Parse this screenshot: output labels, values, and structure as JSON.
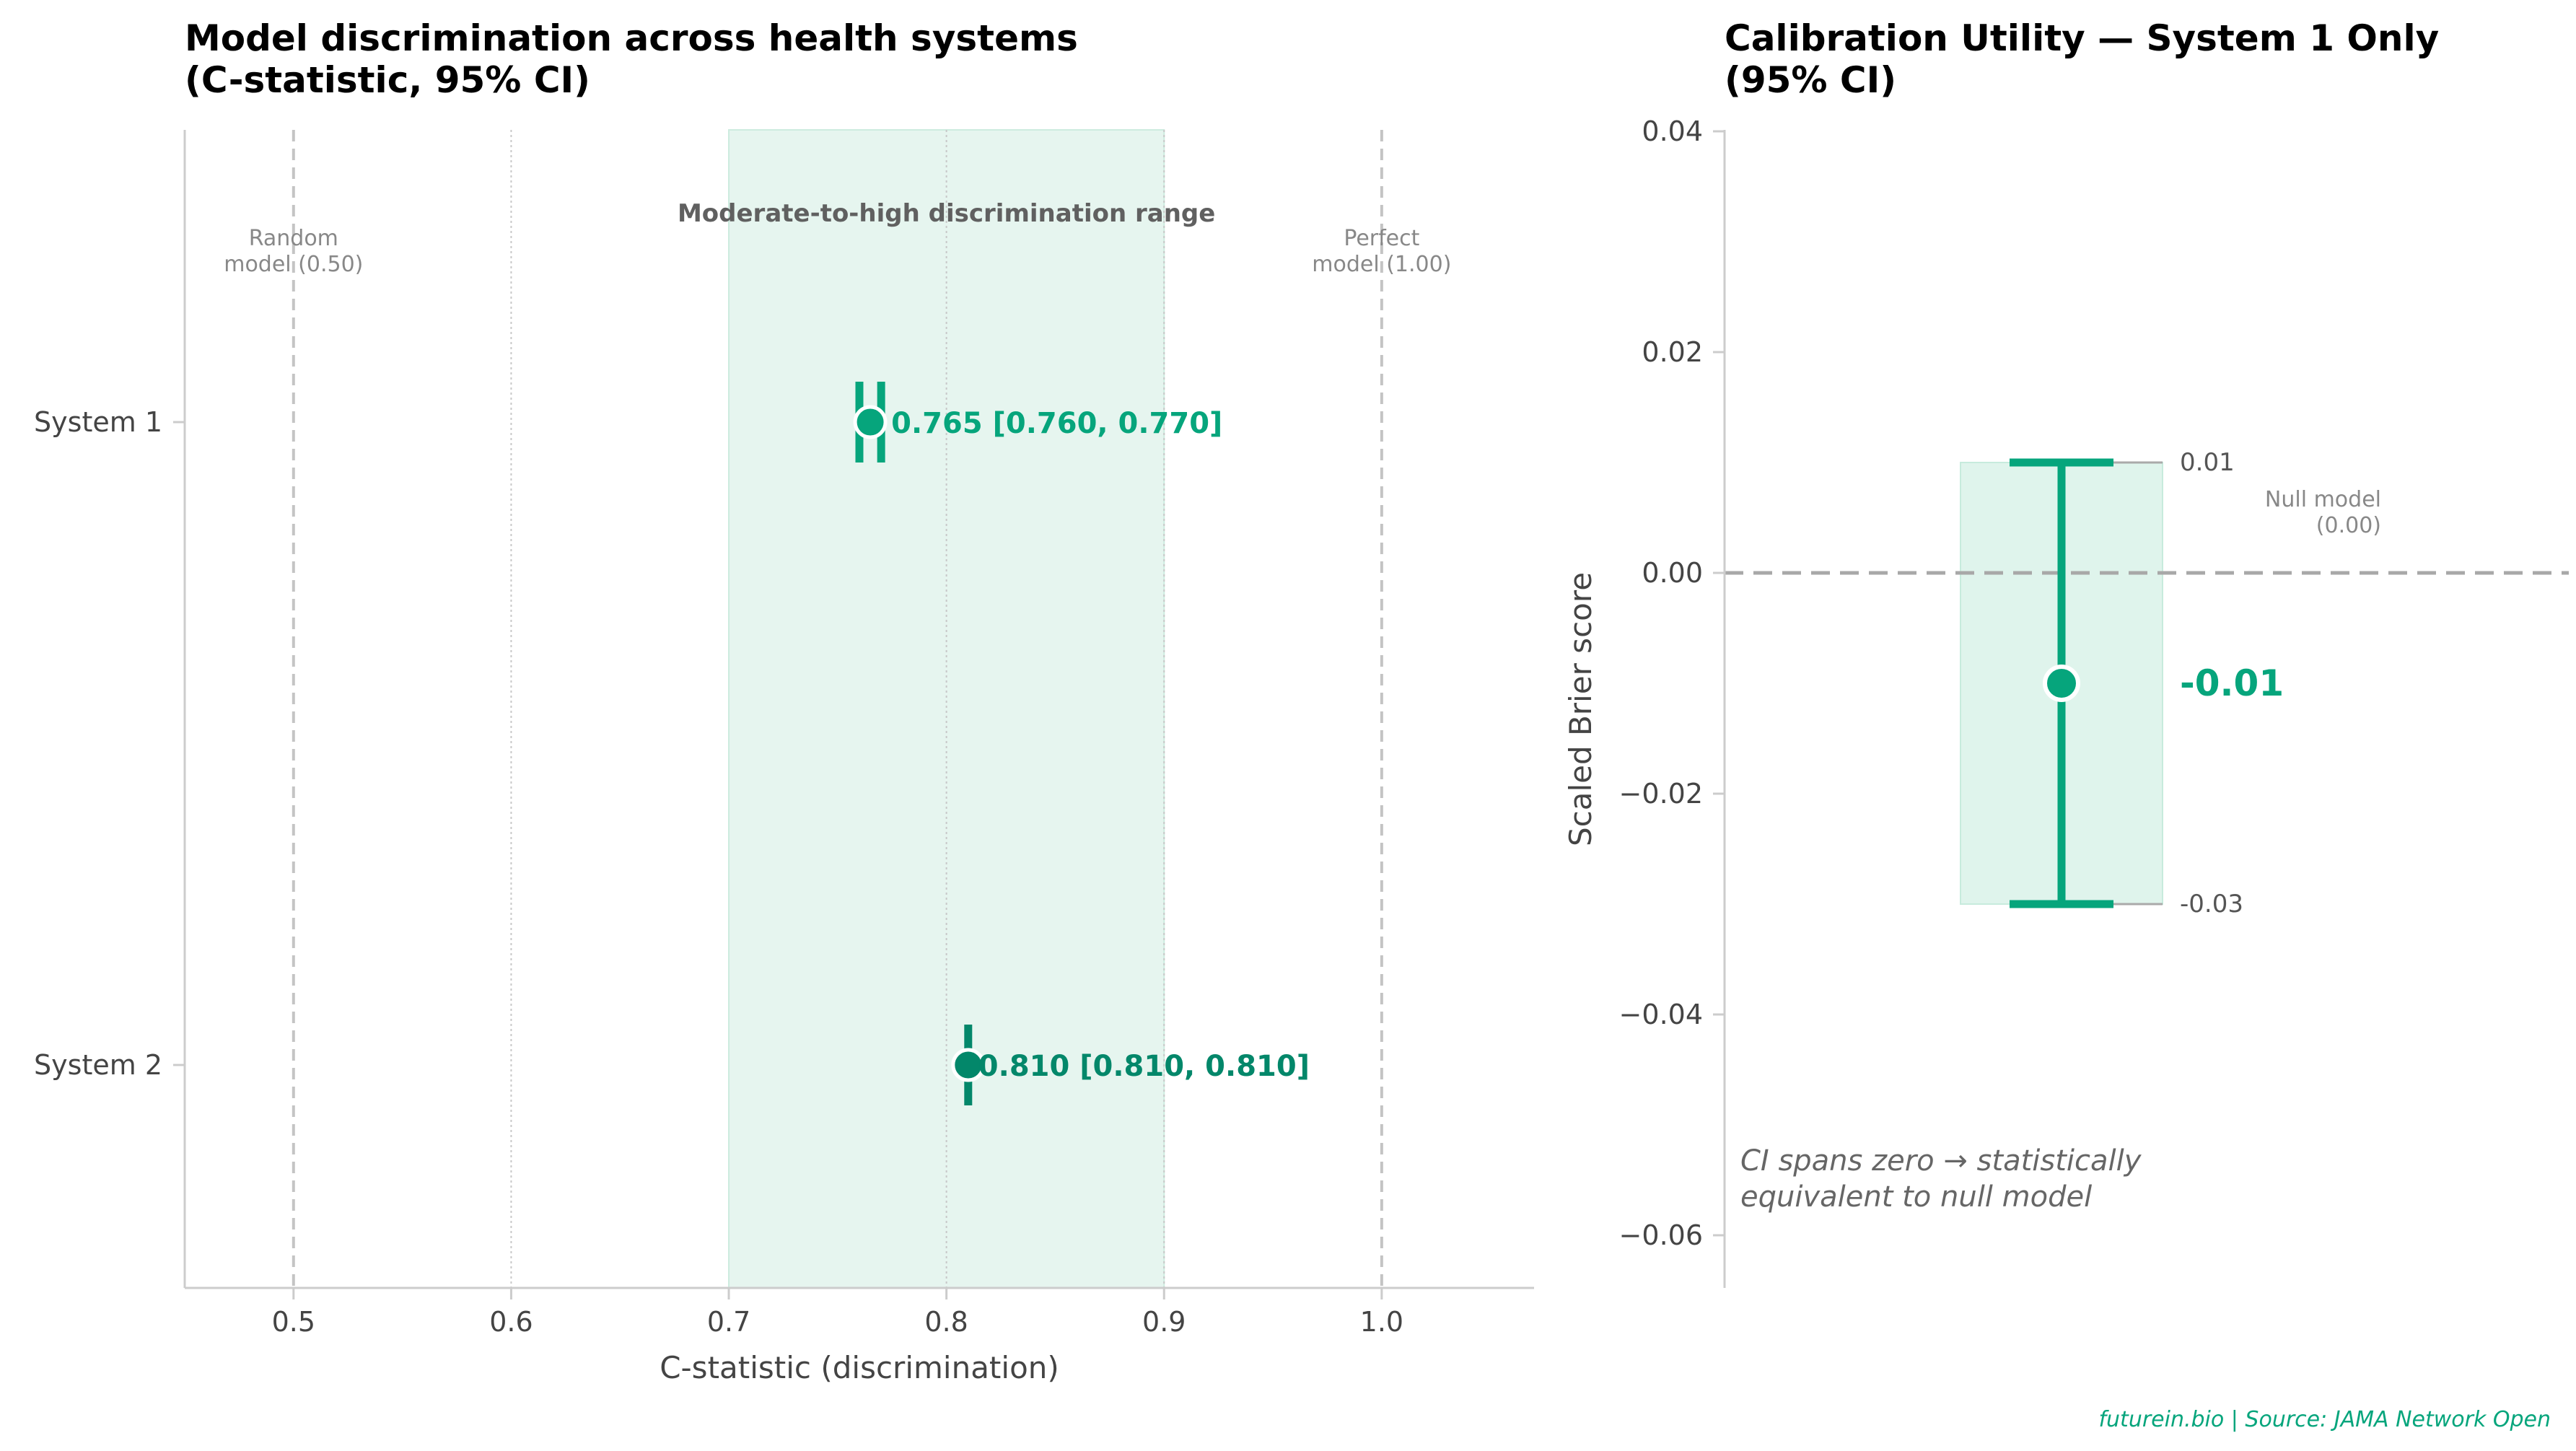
{
  "chart_data": [
    {
      "type": "forest",
      "title_lines": [
        "Model discrimination across health systems",
        "(C-statistic, 95% CI)"
      ],
      "xlabel": "C-statistic (discrimination)",
      "xlim": [
        0.45,
        1.07
      ],
      "xticks": [
        0.5,
        0.6,
        0.7,
        0.8,
        0.9,
        1.0
      ],
      "xtick_labels": [
        "0.5",
        "0.6",
        "0.7",
        "0.8",
        "0.9",
        "1.0"
      ],
      "minor_gridlines": [
        0.6,
        0.8,
        0.9
      ],
      "categories": [
        "System 1",
        "System 2"
      ],
      "series": [
        {
          "category": "System 1",
          "estimate": 0.765,
          "ci_low": 0.76,
          "ci_high": 0.77,
          "label": "0.765 [0.760, 0.770]",
          "color": "#06A57C"
        },
        {
          "category": "System 2",
          "estimate": 0.81,
          "ci_low": 0.81,
          "ci_high": 0.81,
          "label": "0.810 [0.810, 0.810]",
          "color": "#03876A"
        }
      ],
      "reference_lines": [
        {
          "x": 0.5,
          "label_lines": [
            "Random",
            "model (0.50)"
          ]
        },
        {
          "x": 1.0,
          "label_lines": [
            "Perfect",
            "model (1.00)"
          ]
        }
      ],
      "shaded_band": {
        "from": 0.7,
        "to": 0.9,
        "label": "Moderate-to-high discrimination range",
        "color": "#E6F5EF"
      }
    },
    {
      "type": "interval",
      "title_lines": [
        "Calibration Utility — System 1 Only",
        "(95% CI)"
      ],
      "ylabel": "Scaled Brier score",
      "ylim": [
        -0.065,
        0.04
      ],
      "yticks": [
        0.04,
        0.02,
        0.0,
        -0.02,
        -0.04,
        -0.06
      ],
      "ytick_labels": [
        "0.04",
        "0.02",
        "0.00",
        "−0.02",
        "−0.04",
        "−0.06"
      ],
      "estimate": -0.01,
      "ci_low": -0.03,
      "ci_high": 0.01,
      "estimate_label": "-0.01",
      "ci_high_label": "0.01",
      "ci_low_label": "-0.03",
      "reference_line": {
        "y": 0.0,
        "label_lines": [
          "Null model",
          "(0.00)"
        ]
      },
      "note_lines": [
        "CI spans zero → statistically",
        "equivalent to null model"
      ],
      "color": "#06A57C",
      "band_color": "#DFF4EC"
    }
  ],
  "footer": "futurein.bio | Source: JAMA Network Open",
  "colors": {
    "accent": "#06A57C",
    "accent_dark": "#03876A",
    "footer": "#06A57C"
  }
}
